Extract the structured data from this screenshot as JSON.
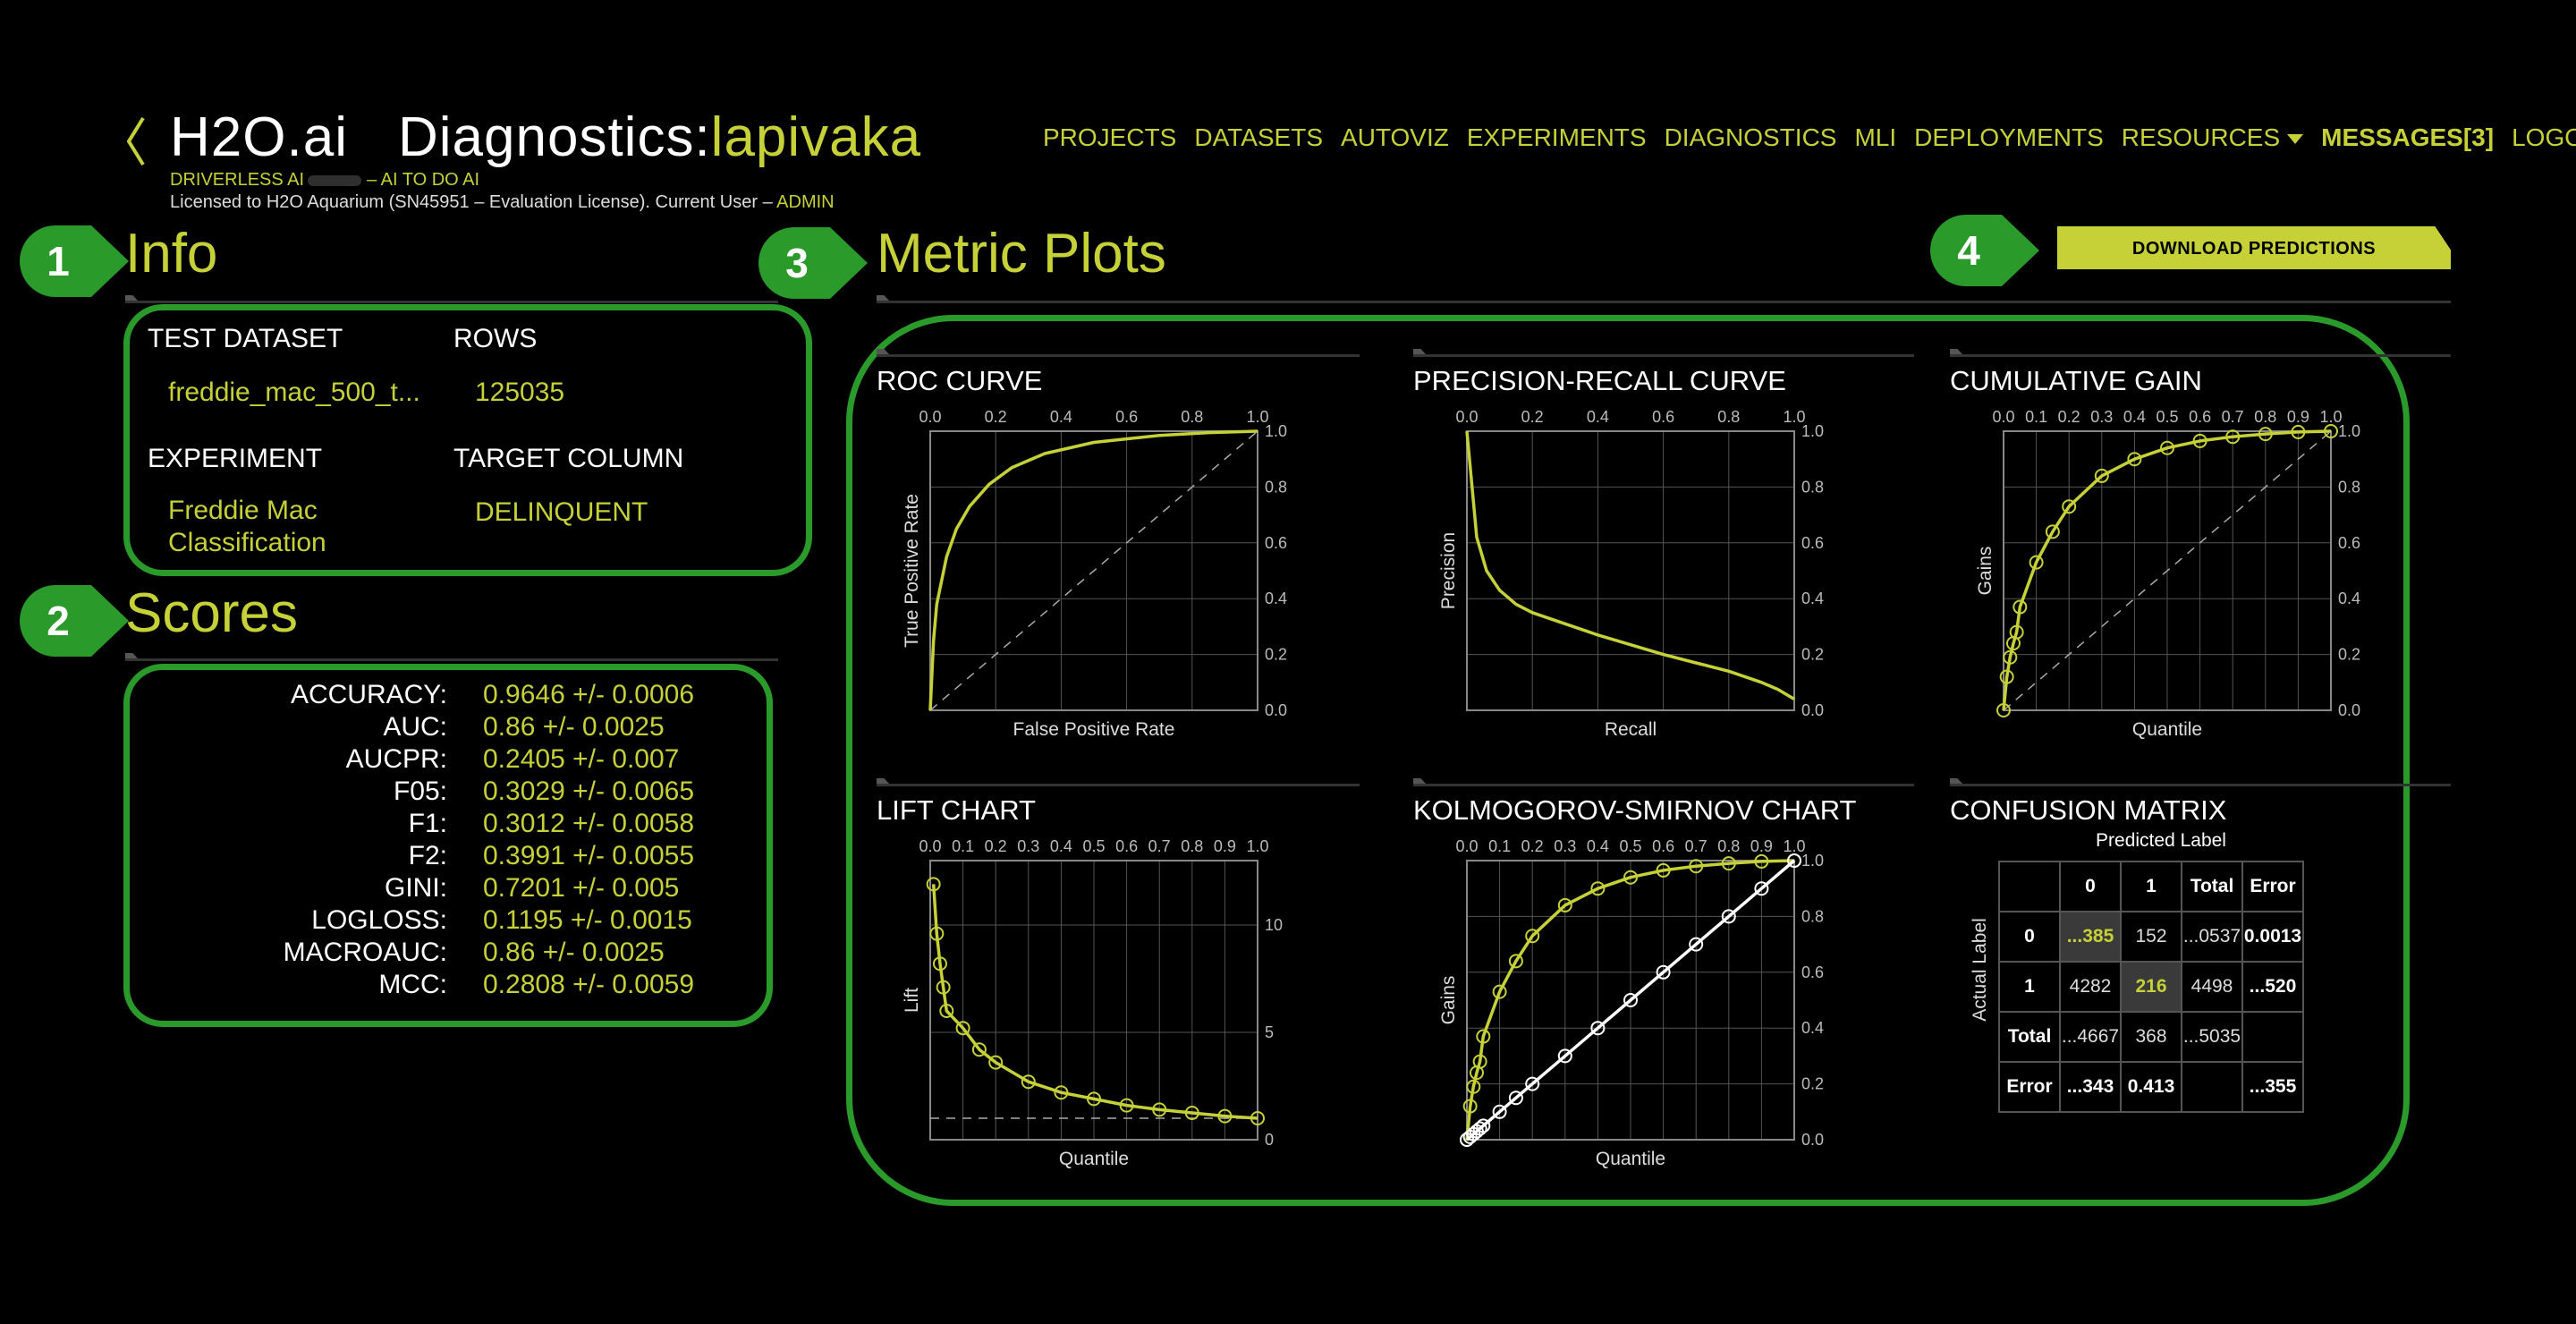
{
  "header": {
    "brand": "H2O.ai",
    "page_prefix": "Diagnostics:",
    "page_name": "lapivaka",
    "product_line_left": "DRIVERLESS AI",
    "product_line_right": "– AI TO DO AI",
    "license_text": "Licensed to H2O Aquarium (SN45951 – Evaluation License). Current User –",
    "current_user": "ADMIN"
  },
  "nav": {
    "items": [
      "PROJECTS",
      "DATASETS",
      "AUTOVIZ",
      "EXPERIMENTS",
      "DIAGNOSTICS",
      "MLI",
      "DEPLOYMENTS"
    ],
    "resources": "RESOURCES",
    "messages": "MESSAGES[3]",
    "logout": "LOGOUT"
  },
  "callouts": [
    "1",
    "2",
    "3",
    "4"
  ],
  "info": {
    "title": "Info",
    "test_dataset_label": "TEST DATASET",
    "test_dataset_value": "freddie_mac_500_t...",
    "rows_label": "ROWS",
    "rows_value": "125035",
    "experiment_label": "EXPERIMENT",
    "experiment_value_line1": "Freddie Mac",
    "experiment_value_line2": "Classification",
    "target_label": "TARGET COLUMN",
    "target_value": "DELINQUENT"
  },
  "scores": {
    "title": "Scores",
    "rows": [
      {
        "name": "ACCURACY:",
        "value": "0.9646 +/- 0.0006"
      },
      {
        "name": "AUC:",
        "value": "0.86 +/- 0.0025"
      },
      {
        "name": "AUCPR:",
        "value": "0.2405 +/- 0.007"
      },
      {
        "name": "F05:",
        "value": "0.3029 +/- 0.0065"
      },
      {
        "name": "F1:",
        "value": "0.3012 +/- 0.0058"
      },
      {
        "name": "F2:",
        "value": "0.3991 +/- 0.0055"
      },
      {
        "name": "GINI:",
        "value": "0.7201 +/- 0.005"
      },
      {
        "name": "LOGLOSS:",
        "value": "0.1195 +/- 0.0015"
      },
      {
        "name": "MACROAUC:",
        "value": "0.86 +/- 0.0025"
      },
      {
        "name": "MCC:",
        "value": "0.2808 +/- 0.0059"
      }
    ]
  },
  "metric_plots": {
    "title": "Metric Plots",
    "download_label": "DOWNLOAD PREDICTIONS"
  },
  "colors": {
    "accent": "#c6d138",
    "callout": "#2a9a2a",
    "grid": "#555555"
  },
  "chart_data": [
    {
      "id": "roc",
      "type": "line",
      "title": "ROC CURVE",
      "xlabel": "False Positive Rate",
      "ylabel": "True Positive Rate",
      "xticks": [
        "0.0",
        "0.2",
        "0.4",
        "0.6",
        "0.8",
        "1.0"
      ],
      "yticks": [
        "0.0",
        "0.2",
        "0.4",
        "0.6",
        "0.8",
        "1.0"
      ],
      "xlim": [
        0,
        1
      ],
      "ylim": [
        0,
        1
      ],
      "grid": true,
      "diagonal": true,
      "series": [
        {
          "x": [
            0,
            0.01,
            0.02,
            0.05,
            0.08,
            0.12,
            0.18,
            0.25,
            0.35,
            0.5,
            0.7,
            0.85,
            1.0
          ],
          "y": [
            0,
            0.25,
            0.38,
            0.55,
            0.65,
            0.73,
            0.81,
            0.87,
            0.92,
            0.96,
            0.985,
            0.995,
            1.0
          ],
          "markers": false
        }
      ]
    },
    {
      "id": "pr",
      "type": "line",
      "title": "PRECISION-RECALL CURVE",
      "xlabel": "Recall",
      "ylabel": "Precision",
      "xticks": [
        "0.0",
        "0.2",
        "0.4",
        "0.6",
        "0.8",
        "1.0"
      ],
      "yticks": [
        "0.0",
        "0.2",
        "0.4",
        "0.6",
        "0.8",
        "1.0"
      ],
      "xlim": [
        0,
        1
      ],
      "ylim": [
        0,
        1
      ],
      "grid": true,
      "diagonal": false,
      "series": [
        {
          "x": [
            0,
            0.03,
            0.06,
            0.1,
            0.15,
            0.2,
            0.3,
            0.4,
            0.5,
            0.6,
            0.7,
            0.8,
            0.9,
            0.95,
            1.0
          ],
          "y": [
            1.0,
            0.62,
            0.5,
            0.43,
            0.38,
            0.35,
            0.31,
            0.27,
            0.235,
            0.2,
            0.17,
            0.14,
            0.1,
            0.075,
            0.04
          ],
          "markers": false
        }
      ]
    },
    {
      "id": "gain",
      "type": "line",
      "title": "CUMULATIVE GAIN",
      "xlabel": "Quantile",
      "ylabel": "Gains",
      "xticks": [
        "0.0",
        "0.1",
        "0.2",
        "0.3",
        "0.4",
        "0.5",
        "0.6",
        "0.7",
        "0.8",
        "0.9",
        "1.0"
      ],
      "yticks": [
        "0.0",
        "0.2",
        "0.4",
        "0.6",
        "0.8",
        "1.0"
      ],
      "xlim": [
        0,
        1
      ],
      "ylim": [
        0,
        1
      ],
      "grid": true,
      "diagonal": true,
      "series": [
        {
          "x": [
            0,
            0.01,
            0.02,
            0.03,
            0.04,
            0.05,
            0.1,
            0.15,
            0.2,
            0.3,
            0.4,
            0.5,
            0.6,
            0.7,
            0.8,
            0.9,
            1.0
          ],
          "y": [
            0,
            0.12,
            0.19,
            0.24,
            0.28,
            0.37,
            0.53,
            0.64,
            0.73,
            0.84,
            0.9,
            0.94,
            0.965,
            0.98,
            0.99,
            0.997,
            1.0
          ],
          "markers": true
        }
      ]
    },
    {
      "id": "lift",
      "type": "line",
      "title": "LIFT CHART",
      "xlabel": "Quantile",
      "ylabel": "Lift",
      "xticks": [
        "0.0",
        "0.1",
        "0.2",
        "0.3",
        "0.4",
        "0.5",
        "0.6",
        "0.7",
        "0.8",
        "0.9",
        "1.0"
      ],
      "yticks": [
        "0",
        "5",
        "10"
      ],
      "ytick_values": [
        0,
        5,
        10
      ],
      "xlim": [
        0,
        1
      ],
      "ylim": [
        0,
        13
      ],
      "grid": true,
      "baseline": 1,
      "series": [
        {
          "x": [
            0.01,
            0.02,
            0.03,
            0.04,
            0.05,
            0.1,
            0.15,
            0.2,
            0.3,
            0.4,
            0.5,
            0.6,
            0.7,
            0.8,
            0.9,
            1.0
          ],
          "y": [
            11.9,
            9.6,
            8.2,
            7.1,
            6.0,
            5.2,
            4.2,
            3.6,
            2.7,
            2.2,
            1.9,
            1.6,
            1.4,
            1.25,
            1.1,
            1.0
          ],
          "markers": true
        }
      ]
    },
    {
      "id": "ks",
      "type": "line",
      "title": "KOLMOGOROV-SMIRNOV CHART",
      "xlabel": "Quantile",
      "ylabel": "Gains",
      "xticks": [
        "0.0",
        "0.1",
        "0.2",
        "0.3",
        "0.4",
        "0.5",
        "0.6",
        "0.7",
        "0.8",
        "0.9",
        "1.0"
      ],
      "yticks": [
        "0.0",
        "0.2",
        "0.4",
        "0.6",
        "0.8",
        "1.0"
      ],
      "xlim": [
        0,
        1
      ],
      "ylim": [
        0,
        1
      ],
      "grid": true,
      "diagonal": false,
      "series": [
        {
          "x": [
            0,
            0.01,
            0.02,
            0.03,
            0.04,
            0.05,
            0.1,
            0.15,
            0.2,
            0.3,
            0.4,
            0.5,
            0.6,
            0.7,
            0.8,
            0.9,
            1.0
          ],
          "y": [
            0,
            0.12,
            0.19,
            0.24,
            0.28,
            0.37,
            0.53,
            0.64,
            0.73,
            0.84,
            0.9,
            0.94,
            0.965,
            0.98,
            0.99,
            0.997,
            1.0
          ],
          "markers": true,
          "color": "#c6d138"
        },
        {
          "x": [
            0,
            0.01,
            0.02,
            0.03,
            0.04,
            0.05,
            0.1,
            0.15,
            0.2,
            0.3,
            0.4,
            0.5,
            0.6,
            0.7,
            0.8,
            0.9,
            1.0
          ],
          "y": [
            0,
            0.01,
            0.02,
            0.03,
            0.04,
            0.05,
            0.1,
            0.15,
            0.2,
            0.3,
            0.4,
            0.5,
            0.6,
            0.7,
            0.8,
            0.9,
            1.0
          ],
          "markers": true,
          "color": "#ffffff"
        }
      ]
    },
    {
      "id": "cm",
      "type": "table",
      "title": "CONFUSION MATRIX",
      "col_axis_label": "Predicted Label",
      "row_axis_label": "Actual Label",
      "headers": [
        "",
        "0",
        "1",
        "Total",
        "Error"
      ],
      "rows": [
        [
          "0",
          "...385",
          "152",
          "...0537",
          "0.0013"
        ],
        [
          "1",
          "4282",
          "216",
          "4498",
          "...520"
        ],
        [
          "Total",
          "...4667",
          "368",
          "...5035",
          ""
        ],
        [
          "Error",
          "...343",
          "0.413",
          "",
          "...355"
        ]
      ]
    }
  ]
}
